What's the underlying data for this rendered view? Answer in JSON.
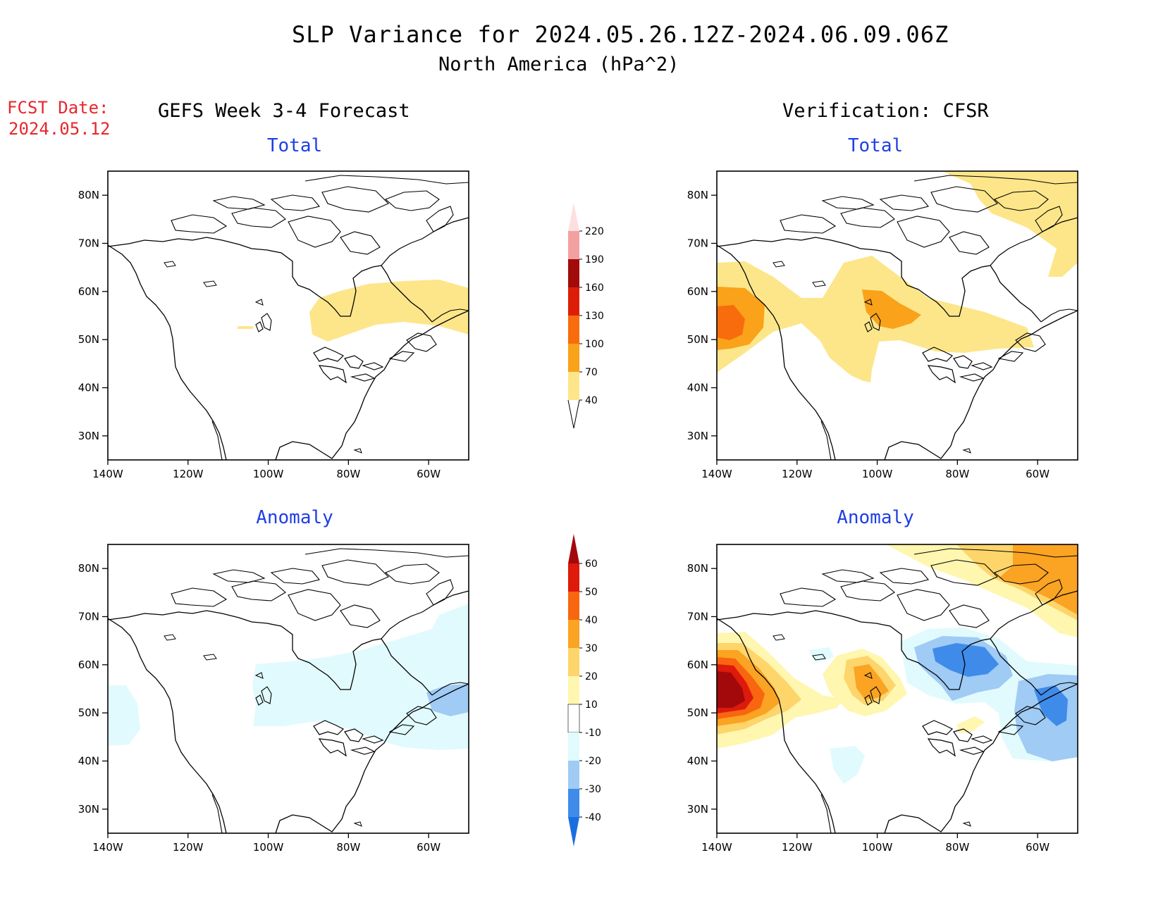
{
  "title": {
    "line1": "SLP Variance for 2024.05.26.12Z-2024.06.09.06Z",
    "line2": "North America (hPa^2)"
  },
  "fcst_date": {
    "label": "FCST Date:",
    "value": "2024.05.12"
  },
  "columns": {
    "left": "GEFS Week 3-4 Forecast",
    "right": "Verification: CFSR"
  },
  "panels": {
    "top_left": "Total",
    "top_right": "Total",
    "bottom_left": "Anomaly",
    "bottom_right": "Anomaly"
  },
  "axes": {
    "lat_ticks": [
      "80N",
      "70N",
      "60N",
      "50N",
      "40N",
      "30N"
    ],
    "lon_ticks": [
      "140W",
      "120W",
      "100W",
      "80W",
      "60W"
    ],
    "lat_values": [
      80,
      70,
      60,
      50,
      40,
      30
    ],
    "lon_values": [
      -140,
      -120,
      -100,
      -80,
      -60
    ],
    "lat_range": [
      25,
      85
    ],
    "lon_range": [
      -140,
      -50
    ]
  },
  "colorbars": {
    "total": {
      "levels": [
        "40",
        "70",
        "100",
        "130",
        "160",
        "190",
        "220"
      ],
      "colors": [
        "#fde68a",
        "#f9a21a",
        "#f86c0d",
        "#dc1e08",
        "#a10c0a",
        "#f3a1a0",
        "#fde0dd"
      ]
    },
    "anomaly": {
      "levels": [
        "-40",
        "-30",
        "-20",
        "-10",
        "10",
        "20",
        "30",
        "40",
        "50",
        "60"
      ],
      "colors": [
        "#1a6fe0",
        "#3f8bea",
        "#9fcbf5",
        "#e1fafd",
        "#ffffff",
        "#fff6b0",
        "#fdd56b",
        "#fba322",
        "#f86610",
        "#dd1a0b",
        "#a3090b"
      ]
    }
  },
  "colors": {
    "title_blue": "#1f3ee6",
    "fcst_red": "#e8262b"
  }
}
